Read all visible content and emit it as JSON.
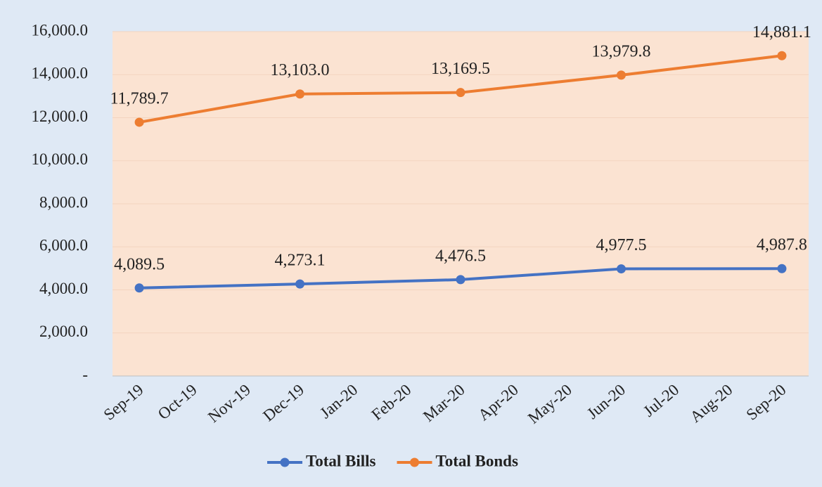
{
  "chart_data": {
    "type": "line",
    "categories": [
      "Sep-19",
      "Oct-19",
      "Nov-19",
      "Dec-19",
      "Jan-20",
      "Feb-20",
      "Mar-20",
      "Apr-20",
      "May-20",
      "Jun-20",
      "Jul-20",
      "Aug-20",
      "Sep-20"
    ],
    "series": [
      {
        "name": "Total Bills",
        "color": "#4472c4",
        "x": [
          "Sep-19",
          "Dec-19",
          "Mar-20",
          "Jun-20",
          "Sep-20"
        ],
        "values": [
          4089.5,
          4273.1,
          4476.5,
          4977.5,
          4987.8
        ],
        "value_labels": [
          "4,089.5",
          "4,273.1",
          "4,476.5",
          "4,977.5",
          "4,987.8"
        ]
      },
      {
        "name": "Total Bonds",
        "color": "#ed7d31",
        "x": [
          "Sep-19",
          "Dec-19",
          "Mar-20",
          "Jun-20",
          "Sep-20"
        ],
        "values": [
          11789.7,
          13103.0,
          13169.5,
          13979.8,
          14881.1
        ],
        "value_labels": [
          "11,789.7",
          "13,103.0",
          "13,169.5",
          "13,979.8",
          "14,881.1"
        ]
      }
    ],
    "ylim": [
      0,
      16000
    ],
    "yticks": [
      {
        "value": 0,
        "label": "-"
      },
      {
        "value": 2000,
        "label": "2,000.0"
      },
      {
        "value": 4000,
        "label": "4,000.0"
      },
      {
        "value": 6000,
        "label": "6,000.0"
      },
      {
        "value": 8000,
        "label": "8,000.0"
      },
      {
        "value": 10000,
        "label": "10,000.0"
      },
      {
        "value": 12000,
        "label": "12,000.0"
      },
      {
        "value": 14000,
        "label": "14,000.0"
      },
      {
        "value": 16000,
        "label": "16,000.0"
      }
    ],
    "grid": true,
    "plot_background": "#fbe3d2",
    "legend": "bottom"
  }
}
